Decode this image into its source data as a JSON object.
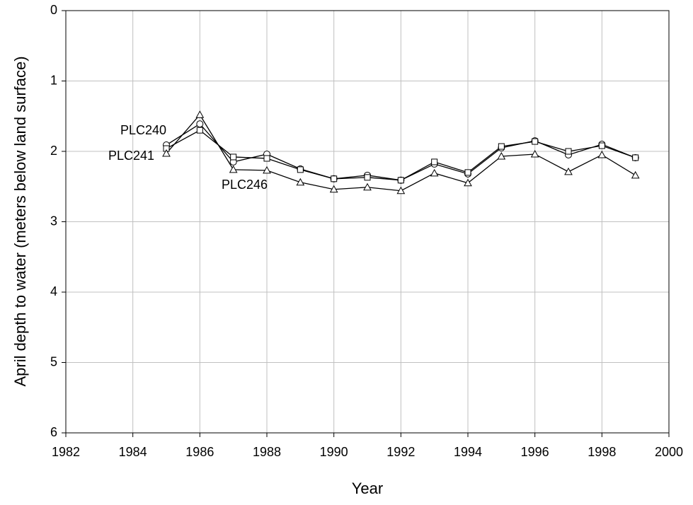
{
  "chart_data": {
    "type": "line",
    "x_label": "Year",
    "y_label": "April depth to water (meters below land surface)",
    "x": [
      1985,
      1986,
      1987,
      1988,
      1989,
      1990,
      1991,
      1992,
      1993,
      1994,
      1995,
      1996,
      1997,
      1998,
      1999
    ],
    "series": [
      {
        "name": "PLC240",
        "color": "#000000",
        "marker": "circle",
        "values": [
          1.91,
          1.61,
          2.15,
          2.04,
          2.25,
          2.39,
          2.34,
          2.41,
          2.18,
          2.32,
          1.95,
          1.85,
          2.05,
          1.9,
          2.09
        ]
      },
      {
        "name": "PLC241",
        "color": "#000000",
        "marker": "square",
        "values": [
          1.96,
          1.7,
          2.08,
          2.1,
          2.26,
          2.39,
          2.37,
          2.41,
          2.15,
          2.3,
          1.93,
          1.86,
          2.0,
          1.92,
          2.09
        ]
      },
      {
        "name": "PLC246",
        "color": "#000000",
        "marker": "triangle",
        "values": [
          2.03,
          1.48,
          2.26,
          2.27,
          2.44,
          2.54,
          2.51,
          2.56,
          2.31,
          2.45,
          2.07,
          2.04,
          2.29,
          2.05,
          2.34
        ]
      }
    ],
    "xlim": [
      1982,
      2000
    ],
    "xticks": [
      1982,
      1984,
      1986,
      1988,
      1990,
      1992,
      1994,
      1996,
      1998,
      2000
    ],
    "ylim": [
      6,
      0
    ],
    "yticks": [
      0,
      1,
      2,
      3,
      4,
      5,
      6
    ],
    "grid": true
  }
}
